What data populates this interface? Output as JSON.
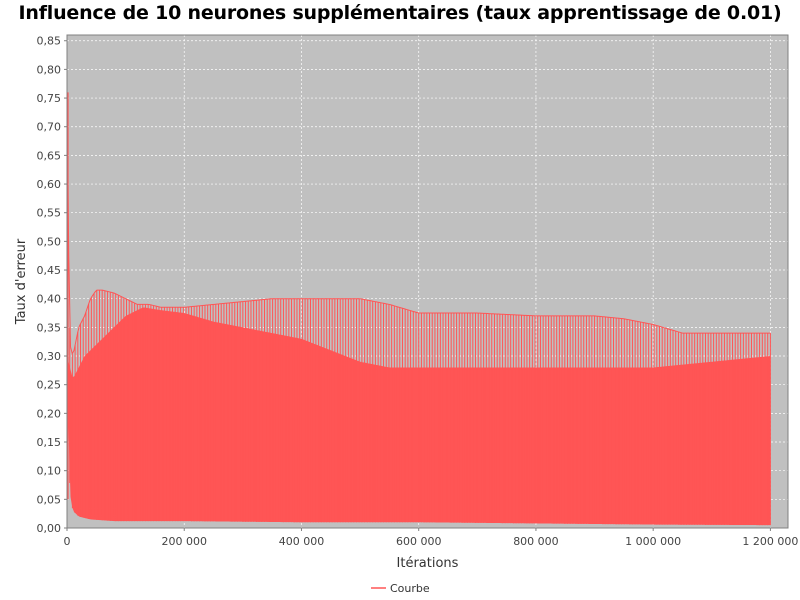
{
  "chart_data": {
    "type": "line",
    "title": "Influence de 10 neurones supplémentaires (taux apprentissage de 0.01)",
    "xlabel": "Itérations",
    "ylabel": "Taux d'erreur",
    "xlim": [
      0,
      1230000
    ],
    "ylim": [
      0,
      0.86
    ],
    "x_ticks": [
      0,
      200000,
      400000,
      600000,
      800000,
      1000000,
      1200000
    ],
    "x_tick_labels": [
      "0",
      "200 000",
      "400 000",
      "600 000",
      "800 000",
      "1 000 000",
      "1 200 000"
    ],
    "y_ticks": [
      0,
      0.05,
      0.1,
      0.15,
      0.2,
      0.25,
      0.3,
      0.35,
      0.4,
      0.45,
      0.5,
      0.55,
      0.6,
      0.65,
      0.7,
      0.75,
      0.8,
      0.85
    ],
    "y_tick_labels": [
      "0,00",
      "0,05",
      "0,10",
      "0,15",
      "0,20",
      "0,25",
      "0,30",
      "0,35",
      "0,40",
      "0,45",
      "0,50",
      "0,55",
      "0,60",
      "0,65",
      "0,70",
      "0,75",
      "0,80",
      "0,85"
    ],
    "grid": true,
    "legend_position": "bottom-center",
    "plot_background": "#c0c0c0",
    "series": [
      {
        "name": "Courbe",
        "color": "#ff5555",
        "upper_envelope": {
          "x": [
            0,
            2000,
            5000,
            10000,
            20000,
            30000,
            40000,
            50000,
            60000,
            80000,
            100000,
            120000,
            140000,
            160000,
            180000,
            200000,
            250000,
            300000,
            350000,
            400000,
            450000,
            500000,
            550000,
            600000,
            700000,
            800000,
            900000,
            950000,
            1000000,
            1050000,
            1100000,
            1150000,
            1200000
          ],
          "y": [
            0.76,
            0.55,
            0.32,
            0.3,
            0.35,
            0.37,
            0.4,
            0.415,
            0.415,
            0.41,
            0.4,
            0.39,
            0.39,
            0.385,
            0.385,
            0.385,
            0.39,
            0.395,
            0.4,
            0.4,
            0.4,
            0.4,
            0.39,
            0.375,
            0.375,
            0.37,
            0.37,
            0.365,
            0.355,
            0.34,
            0.34,
            0.34,
            0.34
          ]
        },
        "secondary_envelope": {
          "x": [
            0,
            10000,
            30000,
            50000,
            70000,
            100000,
            130000,
            160000,
            200000,
            250000,
            300000,
            350000,
            400000,
            450000,
            500000,
            550000,
            600000,
            800000,
            1000000,
            1200000
          ],
          "y": [
            0.3,
            0.26,
            0.3,
            0.32,
            0.34,
            0.37,
            0.385,
            0.38,
            0.375,
            0.36,
            0.35,
            0.34,
            0.33,
            0.31,
            0.29,
            0.28,
            0.28,
            0.28,
            0.28,
            0.3
          ]
        },
        "lower_envelope": {
          "x": [
            0,
            5000,
            10000,
            20000,
            40000,
            80000,
            120000,
            200000,
            400000,
            600000,
            800000,
            1000000,
            1200000
          ],
          "y": [
            0.3,
            0.06,
            0.03,
            0.02,
            0.015,
            0.012,
            0.012,
            0.012,
            0.01,
            0.01,
            0.008,
            0.006,
            0.005
          ]
        },
        "x_end": 1200000
      }
    ]
  }
}
